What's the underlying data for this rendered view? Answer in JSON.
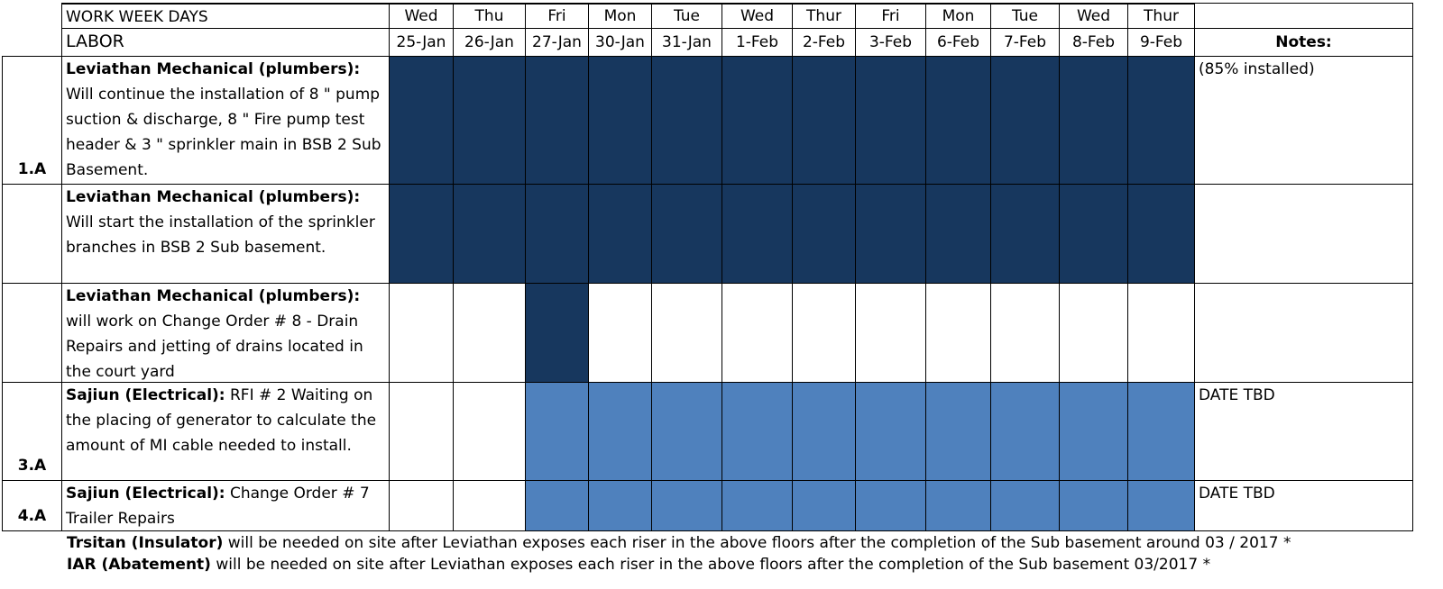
{
  "header": {
    "days_label": "WORK WEEK DAYS",
    "labor_label": "LABOR",
    "notes_label": "Notes:",
    "days": [
      "Wed",
      "Thu",
      "Fri",
      "Mon",
      "Tue",
      "Wed",
      "Thur",
      "Fri",
      "Mon",
      "Tue",
      "Wed",
      "Thur"
    ],
    "dates": [
      "25-Jan",
      "26-Jan",
      "27-Jan",
      "30-Jan",
      "31-Jan",
      "1-Feb",
      "2-Feb",
      "3-Feb",
      "6-Feb",
      "7-Feb",
      "8-Feb",
      "9-Feb"
    ]
  },
  "rows": [
    {
      "id": "1.A",
      "company": "Leviathan Mechanical (plumbers):",
      "text": "Will continue the installation of  8 \" pump suction & discharge, 8 \" Fire pump test header & 3 \" sprinkler main in BSB 2 Sub Basement.",
      "note": "(85% installed)",
      "shade": [
        "#17375e",
        "#17375e",
        "#17375e",
        "#17375e",
        "#17375e",
        "#17375e",
        "#17375e",
        "#17375e",
        "#17375e",
        "#17375e",
        "#17375e",
        "#17375e"
      ]
    },
    {
      "company": "Leviathan Mechanical (plumbers):",
      "text": "Will start the installation of the sprinkler branches in BSB 2 Sub basement.",
      "shade": [
        "#17375e",
        "#17375e",
        "#17375e",
        "#17375e",
        "#17375e",
        "#17375e",
        "#17375e",
        "#17375e",
        "#17375e",
        "#17375e",
        "#17375e",
        "#17375e"
      ]
    },
    {
      "company": "Leviathan Mechanical (plumbers):",
      "text": "will work on Change Order # 8  - Drain Repairs and jetting of drains located in the court yard",
      "shade": [
        null,
        null,
        "#17375e",
        null,
        null,
        null,
        null,
        null,
        null,
        null,
        null,
        null
      ]
    },
    {
      "id": "3.A",
      "company": "Sajiun (Electrical):",
      "text": "RFI # 2  Waiting on the placing of generator to calculate the amount of MI cable needed to install.",
      "note": "DATE TBD",
      "shade": [
        null,
        null,
        "#4f81bd",
        "#4f81bd",
        "#4f81bd",
        "#4f81bd",
        "#4f81bd",
        "#4f81bd",
        "#4f81bd",
        "#4f81bd",
        "#4f81bd",
        "#4f81bd"
      ]
    },
    {
      "id": "4.A",
      "company": "Sajiun (Electrical):",
      "text": "Change Order # 7 Trailer Repairs",
      "note": "DATE TBD",
      "shade": [
        null,
        null,
        "#4f81bd",
        "#4f81bd",
        "#4f81bd",
        "#4f81bd",
        "#4f81bd",
        "#4f81bd",
        "#4f81bd",
        "#4f81bd",
        "#4f81bd",
        "#4f81bd"
      ]
    }
  ],
  "footer": [
    {
      "company": "Trsitan (Insulator)",
      "text": "will be needed on site after Leviathan exposes each riser in the above floors after the completion of the Sub basement around 03 / 2017 *"
    },
    {
      "company": "IAR (Abatement)",
      "text": " will be needed on site after Leviathan exposes each riser in the above floors after the completion of the Sub basement 03/2017 *"
    }
  ]
}
